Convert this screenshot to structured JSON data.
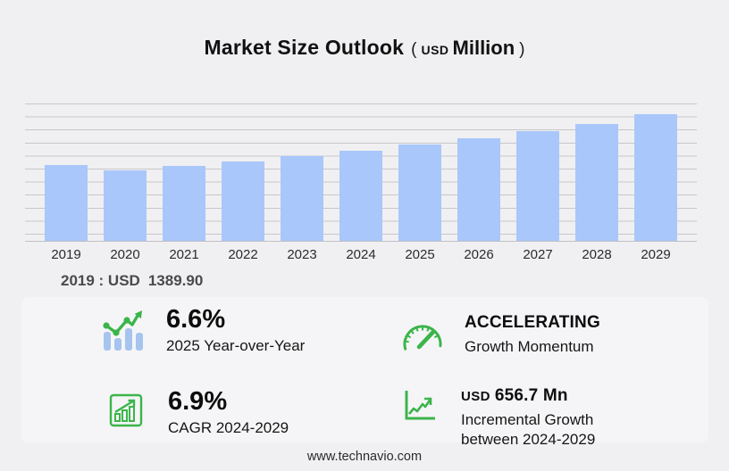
{
  "title": {
    "main": "Market Size Outlook",
    "paren_open": "(",
    "currency": "USD",
    "unit": "Million",
    "paren_close": ")"
  },
  "chart_data": {
    "type": "bar",
    "title": "Market Size Outlook (USD Million)",
    "categories": [
      "2019",
      "2020",
      "2021",
      "2022",
      "2023",
      "2024",
      "2025",
      "2026",
      "2027",
      "2028",
      "2029"
    ],
    "values": [
      1389.9,
      1292.4,
      1373.4,
      1455.2,
      1553.3,
      1658.3,
      1767.7,
      1880.3,
      2011.1,
      2141.9,
      2315.0
    ],
    "xlabel": "",
    "ylabel": "USD Million",
    "ylim": [
      0,
      2534
    ],
    "grid": true,
    "legend": false,
    "bar_color": "#a9c7fa"
  },
  "annotation": {
    "prefix": "2019 : USD",
    "value": "1389.90"
  },
  "stats": [
    {
      "icon": "bar-chart-trend-icon",
      "value": "6.6%",
      "label": "2025 Year-over-Year"
    },
    {
      "icon": "chart-growth-icon",
      "value": "6.9%",
      "label": "CAGR 2024-2029"
    },
    {
      "icon": "speedometer-icon",
      "value": "ACCELERATING",
      "label": "Growth Momentum"
    },
    {
      "icon": "line-growth-icon",
      "value_prefix": "USD",
      "value": "656.7 Mn",
      "label": "Incremental Growth between 2024-2029"
    }
  ],
  "footer": {
    "website": "www.technavio.com"
  },
  "colors": {
    "background": "#f0f0f2",
    "panel": "#f5f5f7",
    "bar": "#a9c7fa",
    "gridline": "#c7c7cc",
    "axis": "#bfbfc4",
    "green": "#3bb54a",
    "icon_bar_blue": "#a5c4ee",
    "text_dark": "#111111",
    "text_gray": "#4a4a4a"
  }
}
